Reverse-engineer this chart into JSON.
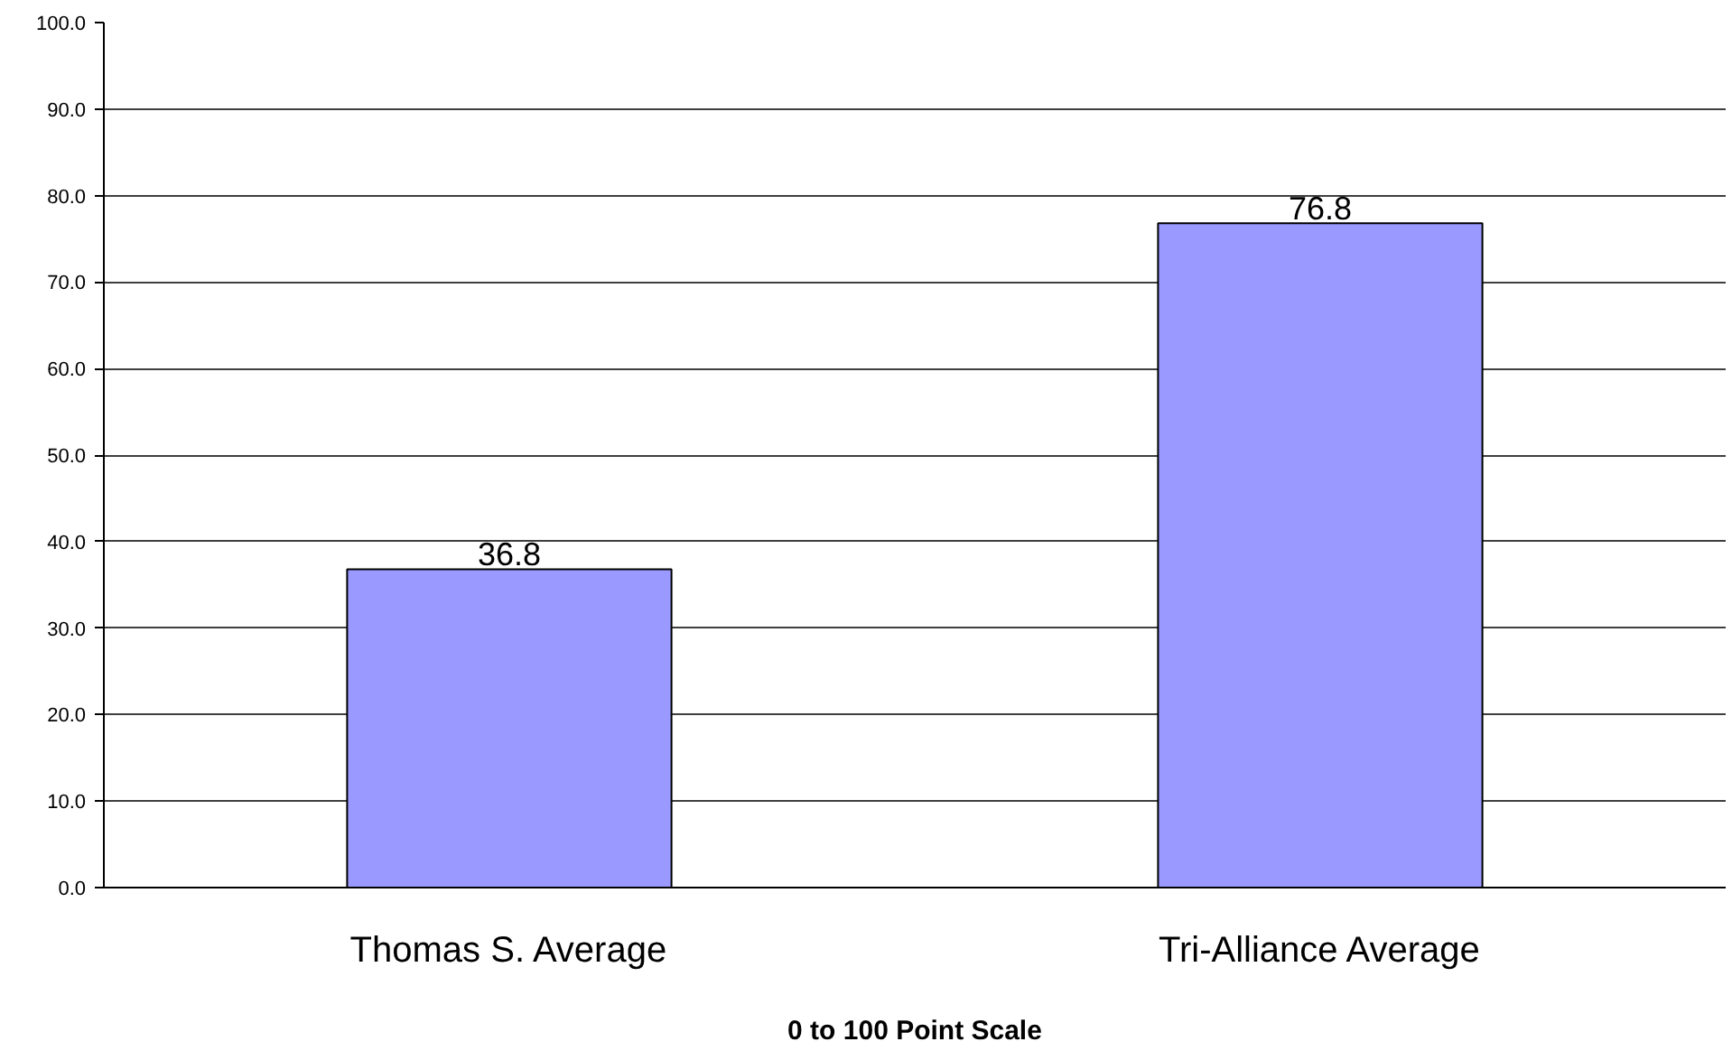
{
  "chart_data": {
    "type": "bar",
    "xlabel": "0 to 100 Point Scale",
    "categories": [
      "Thomas S. Average",
      "Tri-Alliance Average"
    ],
    "values": [
      36.8,
      76.8
    ],
    "color": "#9999ff",
    "ylim": [
      0,
      100
    ],
    "yticks": [
      {
        "value": 0,
        "label": "0.0"
      },
      {
        "value": 10,
        "label": "10.0"
      },
      {
        "value": 20,
        "label": "20.0"
      },
      {
        "value": 30,
        "label": "30.0"
      },
      {
        "value": 40,
        "label": "40.0"
      },
      {
        "value": 50,
        "label": "50.0"
      },
      {
        "value": 60,
        "label": "60.0"
      },
      {
        "value": 70,
        "label": "70.0"
      },
      {
        "value": 80,
        "label": "80.0"
      },
      {
        "value": 90,
        "label": "90.0"
      },
      {
        "value": 100,
        "label": "100.0"
      }
    ],
    "grid": "y",
    "data_labels": true
  }
}
